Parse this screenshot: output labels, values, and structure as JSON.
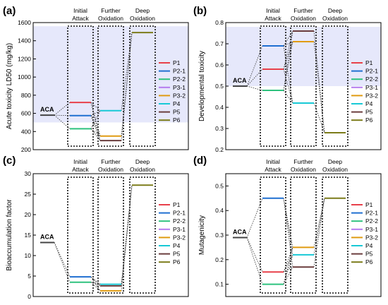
{
  "figure": {
    "legend": [
      {
        "name": "P1",
        "color": "#e8404a"
      },
      {
        "name": "P2-1",
        "color": "#1f6fd1"
      },
      {
        "name": "P2-2",
        "color": "#2ec27e"
      },
      {
        "name": "P3-1",
        "color": "#b57bee"
      },
      {
        "name": "P3-2",
        "color": "#e09b12"
      },
      {
        "name": "P4",
        "color": "#18c9d6"
      },
      {
        "name": "P5",
        "color": "#6a3d3d"
      },
      {
        "name": "P6",
        "color": "#7c7c1a"
      }
    ],
    "start_label": "ACA",
    "stages": [
      {
        "line1": "Initial",
        "line2": "Attack"
      },
      {
        "line1": "Further",
        "line2": "Oxidation"
      },
      {
        "line1": "Deep",
        "line2": "Oxidation"
      }
    ]
  },
  "chart_data": [
    {
      "type": "line",
      "panel": "(a)",
      "ylabel": "Acute toxicity LD50 (mg/kg)",
      "ylim": [
        200,
        1600
      ],
      "yticks": [
        200,
        400,
        600,
        800,
        1000,
        1200,
        1400,
        1600
      ],
      "shaded_band": [
        500,
        1560
      ],
      "start": {
        "label": "ACA",
        "value": 580
      },
      "series": [
        {
          "name": "P1",
          "stage": 0,
          "value": 720
        },
        {
          "name": "P2-1",
          "stage": 0,
          "value": 575
        },
        {
          "name": "P2-2",
          "stage": 0,
          "value": 430
        },
        {
          "name": "P4",
          "stage": 1,
          "value": 630
        },
        {
          "name": "P3-2",
          "stage": 1,
          "value": 350
        },
        {
          "name": "P5",
          "stage": 1,
          "value": 300
        },
        {
          "name": "P6",
          "stage": 2,
          "value": 1490
        }
      ]
    },
    {
      "type": "line",
      "panel": "(b)",
      "ylabel": "Developmental toxicity",
      "ylim": [
        0.2,
        0.8
      ],
      "yticks": [
        0.2,
        0.3,
        0.4,
        0.5,
        0.6,
        0.7,
        0.8
      ],
      "shaded_band": [
        0.5,
        0.78
      ],
      "start": {
        "label": "ACA",
        "value": 0.5
      },
      "series": [
        {
          "name": "P2-1",
          "stage": 0,
          "value": 0.69
        },
        {
          "name": "P1",
          "stage": 0,
          "value": 0.58
        },
        {
          "name": "P2-2",
          "stage": 0,
          "value": 0.48
        },
        {
          "name": "P5",
          "stage": 1,
          "value": 0.76
        },
        {
          "name": "P3-2",
          "stage": 1,
          "value": 0.71
        },
        {
          "name": "P4",
          "stage": 1,
          "value": 0.42
        },
        {
          "name": "P6",
          "stage": 2,
          "value": 0.28
        }
      ]
    },
    {
      "type": "line",
      "panel": "(c)",
      "ylabel": "Bioaccumulation factor",
      "ylim": [
        0,
        30
      ],
      "yticks": [
        0,
        5,
        10,
        15,
        20,
        25,
        30
      ],
      "shaded_band": null,
      "start": {
        "label": "ACA",
        "value": 13.2
      },
      "series": [
        {
          "name": "P2-1",
          "stage": 0,
          "value": 4.8
        },
        {
          "name": "P2-2",
          "stage": 0,
          "value": 3.5
        },
        {
          "name": "P4",
          "stage": 1,
          "value": 3.0
        },
        {
          "name": "P5",
          "stage": 1,
          "value": 2.6
        },
        {
          "name": "P3-2",
          "stage": 1,
          "value": 1.4
        },
        {
          "name": "P6",
          "stage": 2,
          "value": 27.2
        }
      ]
    },
    {
      "type": "line",
      "panel": "(d)",
      "ylabel": "Mutagenicity",
      "ylim": [
        0.05,
        0.55
      ],
      "yticks": [
        0.1,
        0.2,
        0.3,
        0.4,
        0.5
      ],
      "shaded_band": null,
      "start": {
        "label": "ACA",
        "value": 0.29
      },
      "series": [
        {
          "name": "P2-1",
          "stage": 0,
          "value": 0.45
        },
        {
          "name": "P1",
          "stage": 0,
          "value": 0.15
        },
        {
          "name": "P2-2",
          "stage": 0,
          "value": 0.1
        },
        {
          "name": "P3-2",
          "stage": 1,
          "value": 0.25
        },
        {
          "name": "P4",
          "stage": 1,
          "value": 0.22
        },
        {
          "name": "P5",
          "stage": 1,
          "value": 0.17
        },
        {
          "name": "P6",
          "stage": 2,
          "value": 0.45
        }
      ]
    }
  ]
}
